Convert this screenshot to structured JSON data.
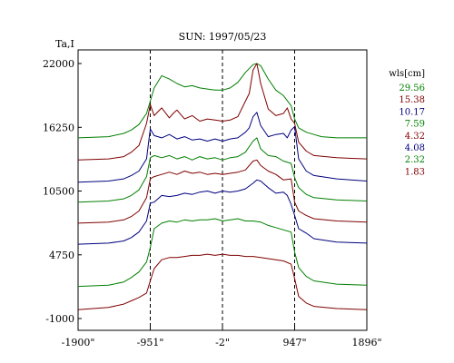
{
  "chart_data": {
    "type": "line",
    "title": "SUN: 1997/05/23",
    "ylabel": "Ta,I",
    "xlabel": "",
    "x_ticks": [
      {
        "value": -1900,
        "label": "-1900\""
      },
      {
        "value": -951,
        "label": "-951\""
      },
      {
        "value": -2,
        "label": "-2\""
      },
      {
        "value": 947,
        "label": "947\""
      },
      {
        "value": 1896,
        "label": "1896\""
      }
    ],
    "y_ticks": [
      {
        "value": -1000,
        "label": "-1000"
      },
      {
        "value": 4750,
        "label": "4750"
      },
      {
        "value": 10500,
        "label": "10500"
      },
      {
        "value": 16250,
        "label": "16250"
      },
      {
        "value": 22000,
        "label": "22000"
      }
    ],
    "xlim": [
      -1900,
      1896
    ],
    "ylim": [
      -1000,
      22000
    ],
    "vertical_dashed_lines": [
      -951,
      -2,
      947
    ],
    "legend": {
      "title": "wls[cm]",
      "placement": "right",
      "items": [
        {
          "label": "29.56",
          "color": "#007f00"
        },
        {
          "label": "15.38",
          "color": "#7f0000"
        },
        {
          "label": "10.17",
          "color": "#00007f"
        },
        {
          "label": "7.59",
          "color": "#007f00"
        },
        {
          "label": "4.32",
          "color": "#7f0000"
        },
        {
          "label": "4.08",
          "color": "#00007f"
        },
        {
          "label": "2.32",
          "color": "#007f00"
        },
        {
          "label": "1.83",
          "color": "#7f0000"
        }
      ]
    },
    "series": [
      {
        "name": "29.56",
        "color": "#007f00",
        "x": [
          -1900,
          -1500,
          -1300,
          -1200,
          -1100,
          -1000,
          -951,
          -900,
          -800,
          -700,
          -600,
          -500,
          -400,
          -300,
          -200,
          -100,
          0,
          100,
          200,
          300,
          400,
          450,
          500,
          600,
          700,
          800,
          900,
          947,
          1000,
          1100,
          1200,
          1300,
          1500,
          1896
        ],
        "y": [
          15300,
          15400,
          15700,
          16000,
          16500,
          17500,
          18600,
          19800,
          20900,
          20600,
          20200,
          19900,
          20000,
          19800,
          19700,
          19600,
          19600,
          19800,
          20300,
          21200,
          21900,
          22000,
          21800,
          20600,
          19600,
          19100,
          18200,
          17000,
          16200,
          15800,
          15600,
          15400,
          15300,
          15300
        ]
      },
      {
        "name": "15.38",
        "color": "#7f0000",
        "x": [
          -1900,
          -1500,
          -1300,
          -1200,
          -1100,
          -1000,
          -951,
          -900,
          -800,
          -700,
          -650,
          -600,
          -500,
          -400,
          -300,
          -200,
          -100,
          0,
          100,
          200,
          300,
          350,
          400,
          450,
          500,
          600,
          700,
          800,
          850,
          900,
          947,
          1000,
          1100,
          1200,
          1500,
          1896
        ],
        "y": [
          13300,
          13400,
          13600,
          14000,
          14600,
          16600,
          18300,
          17300,
          18000,
          17100,
          17500,
          17800,
          17000,
          17300,
          16800,
          17000,
          16900,
          16800,
          16900,
          17200,
          18600,
          19300,
          21400,
          22000,
          20200,
          17900,
          17300,
          17500,
          18000,
          17000,
          16600,
          14900,
          14100,
          13700,
          13500,
          13400
        ]
      },
      {
        "name": "10.17",
        "color": "#00007f",
        "x": [
          -1900,
          -1500,
          -1300,
          -1200,
          -1100,
          -1000,
          -951,
          -900,
          -800,
          -700,
          -600,
          -500,
          -400,
          -300,
          -200,
          -100,
          0,
          100,
          200,
          300,
          350,
          400,
          450,
          500,
          600,
          700,
          800,
          850,
          900,
          947,
          1000,
          1100,
          1200,
          1500,
          1896
        ],
        "y": [
          11300,
          11400,
          11600,
          11900,
          12300,
          13400,
          16100,
          15500,
          15300,
          15600,
          15200,
          15400,
          15100,
          15200,
          15000,
          15200,
          15000,
          15200,
          15300,
          15800,
          16200,
          17200,
          17600,
          16400,
          15400,
          15600,
          15700,
          15300,
          16000,
          16300,
          13400,
          12300,
          11900,
          11600,
          11400
        ]
      },
      {
        "name": "7.59",
        "color": "#007f00",
        "x": [
          -1900,
          -1500,
          -1300,
          -1200,
          -1100,
          -1000,
          -951,
          -900,
          -800,
          -700,
          -600,
          -500,
          -400,
          -300,
          -200,
          -100,
          0,
          100,
          200,
          300,
          400,
          450,
          500,
          600,
          700,
          800,
          900,
          947,
          1000,
          1100,
          1200,
          1500,
          1896
        ],
        "y": [
          9500,
          9600,
          9800,
          10100,
          10600,
          11800,
          13500,
          13700,
          13500,
          13700,
          13400,
          13600,
          13300,
          13600,
          13400,
          13500,
          13300,
          13500,
          13600,
          14000,
          15000,
          15300,
          14300,
          13700,
          13600,
          13200,
          13000,
          11700,
          10800,
          10200,
          9900,
          9700,
          9600
        ]
      },
      {
        "name": "4.32",
        "color": "#7f0000",
        "x": [
          -1900,
          -1500,
          -1300,
          -1200,
          -1100,
          -1000,
          -951,
          -900,
          -800,
          -700,
          -600,
          -500,
          -400,
          -300,
          -200,
          -100,
          0,
          100,
          200,
          300,
          400,
          450,
          500,
          600,
          700,
          800,
          900,
          947,
          1000,
          1100,
          1200,
          1500,
          1896
        ],
        "y": [
          7600,
          7700,
          7900,
          8200,
          8700,
          9900,
          11600,
          11800,
          12000,
          12200,
          12000,
          12300,
          12100,
          12200,
          12000,
          12100,
          12000,
          12100,
          12200,
          12400,
          13200,
          13300,
          12800,
          12300,
          12000,
          11500,
          11600,
          9500,
          8700,
          8300,
          8000,
          7800,
          7700
        ]
      },
      {
        "name": "4.08",
        "color": "#00007f",
        "x": [
          -1900,
          -1500,
          -1300,
          -1200,
          -1100,
          -1000,
          -951,
          -900,
          -800,
          -700,
          -600,
          -500,
          -400,
          -300,
          -200,
          -100,
          0,
          100,
          200,
          300,
          400,
          450,
          500,
          600,
          700,
          800,
          850,
          900,
          947,
          1000,
          1100,
          1200,
          1500,
          1896
        ],
        "y": [
          5700,
          5800,
          6000,
          6300,
          6800,
          7800,
          9400,
          9500,
          10100,
          10000,
          10100,
          10300,
          10200,
          10400,
          10500,
          10300,
          10500,
          10400,
          10500,
          10700,
          11200,
          11500,
          11400,
          10800,
          10300,
          10400,
          10100,
          9300,
          8300,
          7100,
          6700,
          6200,
          5900,
          5800
        ]
      },
      {
        "name": "2.32",
        "color": "#007f00",
        "x": [
          -1900,
          -1500,
          -1300,
          -1200,
          -1100,
          -1000,
          -951,
          -900,
          -800,
          -700,
          -600,
          -500,
          -400,
          -300,
          -200,
          -100,
          0,
          100,
          200,
          300,
          400,
          500,
          600,
          700,
          800,
          900,
          947,
          1000,
          1100,
          1200,
          1500,
          1896
        ],
        "y": [
          1900,
          2000,
          2300,
          2700,
          3200,
          4100,
          5400,
          7100,
          7600,
          7800,
          7700,
          7900,
          7800,
          7900,
          7900,
          8000,
          7800,
          7900,
          8000,
          7800,
          7800,
          7700,
          7400,
          7200,
          7000,
          6800,
          5000,
          3600,
          2800,
          2400,
          2100,
          2000
        ]
      },
      {
        "name": "1.83",
        "color": "#7f0000",
        "x": [
          -1900,
          -1500,
          -1300,
          -1200,
          -1100,
          -1000,
          -951,
          -900,
          -800,
          -700,
          -600,
          -500,
          -400,
          -300,
          -200,
          -100,
          0,
          100,
          200,
          300,
          400,
          500,
          600,
          700,
          800,
          900,
          947,
          1000,
          1100,
          1200,
          1500,
          1896
        ],
        "y": [
          -200,
          0,
          300,
          600,
          900,
          1300,
          2400,
          3500,
          4300,
          4500,
          4500,
          4600,
          4700,
          4700,
          4800,
          4700,
          4800,
          4700,
          4700,
          4600,
          4600,
          4500,
          4400,
          4300,
          4200,
          3900,
          2600,
          1000,
          400,
          100,
          -100,
          -200
        ]
      }
    ]
  }
}
